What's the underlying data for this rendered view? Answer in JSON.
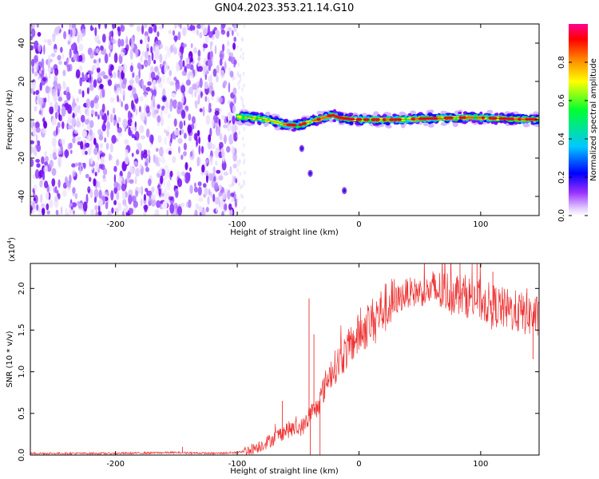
{
  "figure": {
    "title": "GN04.2023.353.21.14.G10"
  },
  "chart_data": [
    {
      "type": "heatmap",
      "xlabel": "Height of straight line (km)",
      "ylabel": "Frequency (Hz)",
      "xlim": [
        -270,
        148
      ],
      "ylim": [
        -50,
        50
      ],
      "xticks": [
        -200,
        -100,
        0,
        100
      ],
      "yticks": [
        -40,
        -20,
        0,
        20,
        40
      ],
      "colorbar": {
        "label": "Normalized spectral amplitude",
        "range": [
          0,
          1
        ],
        "ticks": [
          "0.0",
          "0.2",
          "0.4",
          "0.6",
          "0.8"
        ],
        "colors": [
          "#ffffff",
          "#d8b8ff",
          "#7a00ff",
          "#0000ff",
          "#00d0ff",
          "#00ff40",
          "#ffff00",
          "#ff8000",
          "#ff0000",
          "#ff0088"
        ]
      },
      "noise_region_x": [
        -270,
        -100
      ],
      "signal_region_x": [
        -100,
        148
      ],
      "signal_centerline": [
        [
          -100,
          1.5
        ],
        [
          -90,
          1.2
        ],
        [
          -80,
          0.5
        ],
        [
          -70,
          -1.0
        ],
        [
          -60,
          -2.5
        ],
        [
          -50,
          -3.0
        ],
        [
          -40,
          -1.0
        ],
        [
          -30,
          0.8
        ],
        [
          -22,
          2.5
        ],
        [
          -15,
          1.0
        ],
        [
          -5,
          0.2
        ],
        [
          10,
          0.0
        ],
        [
          30,
          0.0
        ],
        [
          50,
          0.5
        ],
        [
          70,
          0.8
        ],
        [
          90,
          1.2
        ],
        [
          110,
          0.8
        ],
        [
          130,
          0.3
        ],
        [
          148,
          0.2
        ]
      ],
      "isolated_blobs": [
        [
          -47,
          -15
        ],
        [
          -40,
          -28
        ],
        [
          -12,
          -37
        ],
        [
          -160,
          11
        ]
      ]
    },
    {
      "type": "line",
      "xlabel": "Height of straight line (km)",
      "ylabel": "SNR (10 * v/v)",
      "y_multiplier": "(x10^4)",
      "xlim": [
        -270,
        148
      ],
      "ylim": [
        0,
        2.3
      ],
      "xticks": [
        -200,
        -100,
        0,
        100
      ],
      "yticks": [
        "0.0",
        "0.5",
        "1.0",
        "1.5",
        "2.0"
      ],
      "series": [
        {
          "color": "#ee3333",
          "envelope": [
            [
              -270,
              0.02
            ],
            [
              -200,
              0.02
            ],
            [
              -150,
              0.03
            ],
            [
              -120,
              0.02
            ],
            [
              -100,
              0.03
            ],
            [
              -90,
              0.06
            ],
            [
              -80,
              0.12
            ],
            [
              -70,
              0.2
            ],
            [
              -60,
              0.3
            ],
            [
              -50,
              0.32
            ],
            [
              -45,
              0.35
            ],
            [
              -40,
              0.5
            ],
            [
              -35,
              0.55
            ],
            [
              -30,
              0.75
            ],
            [
              -25,
              0.95
            ],
            [
              -20,
              1.05
            ],
            [
              -15,
              1.15
            ],
            [
              -10,
              1.25
            ],
            [
              -5,
              1.35
            ],
            [
              0,
              1.45
            ],
            [
              10,
              1.6
            ],
            [
              20,
              1.75
            ],
            [
              30,
              1.85
            ],
            [
              40,
              1.95
            ],
            [
              60,
              1.97
            ],
            [
              80,
              1.95
            ],
            [
              100,
              1.85
            ],
            [
              120,
              1.75
            ],
            [
              135,
              1.7
            ],
            [
              148,
              1.65
            ]
          ],
          "spikes": [
            [
              -145,
              0.1
            ],
            [
              -63,
              0.65
            ],
            [
              -41,
              1.88
            ],
            [
              -37,
              1.45
            ],
            [
              -40,
              0.0
            ],
            [
              -32,
              0.0
            ],
            [
              83,
              2.32
            ],
            [
              97,
              2.3
            ],
            [
              110,
              2.2
            ],
            [
              143,
              1.15
            ],
            [
              138,
              2.0
            ]
          ]
        }
      ]
    }
  ]
}
